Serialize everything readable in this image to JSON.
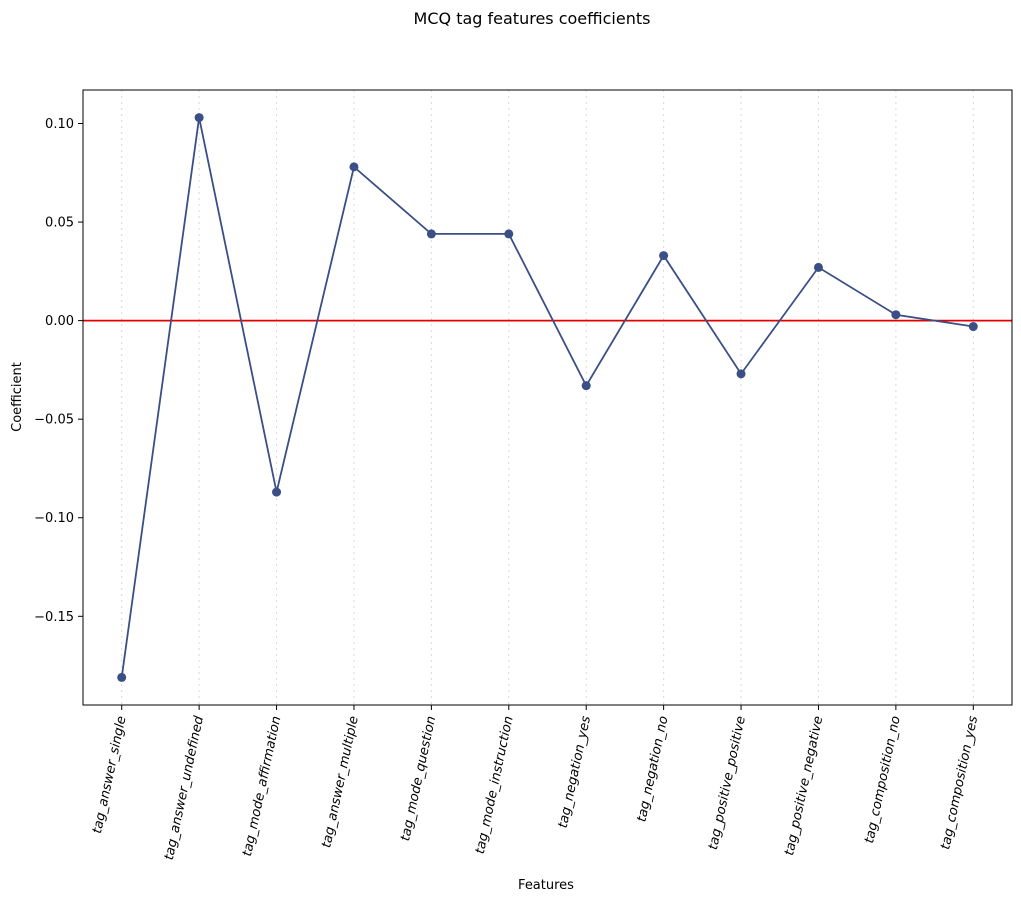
{
  "chart_data": {
    "type": "line",
    "title": "MCQ tag features coefficients",
    "xlabel": "Features",
    "ylabel": "Coefficient",
    "categories": [
      "tag_answer_single",
      "tag_answer_undefined",
      "tag_mode_affirmation",
      "tag_answer_multiple",
      "tag_mode_question",
      "tag_mode_instruction",
      "tag_negation_yes",
      "tag_negation_no",
      "tag_positive_positive",
      "tag_positive_negative",
      "tag_composition_no",
      "tag_composition_yes"
    ],
    "values": [
      -0.181,
      0.103,
      -0.087,
      0.078,
      0.044,
      0.044,
      -0.033,
      0.033,
      -0.027,
      0.027,
      0.003,
      -0.003
    ],
    "ylim": [
      -0.195,
      0.117
    ],
    "yticks": [
      -0.15,
      -0.1,
      -0.05,
      0.0,
      0.05,
      0.1
    ],
    "ytick_labels": [
      "−0.15",
      "−0.10",
      "−0.05",
      "0.00",
      "0.05",
      "0.10"
    ],
    "reference_line": {
      "y": 0,
      "color": "#e00000"
    },
    "line_color": "#3a4f85",
    "grid": {
      "x": true,
      "y": false,
      "style": "dotted"
    }
  }
}
